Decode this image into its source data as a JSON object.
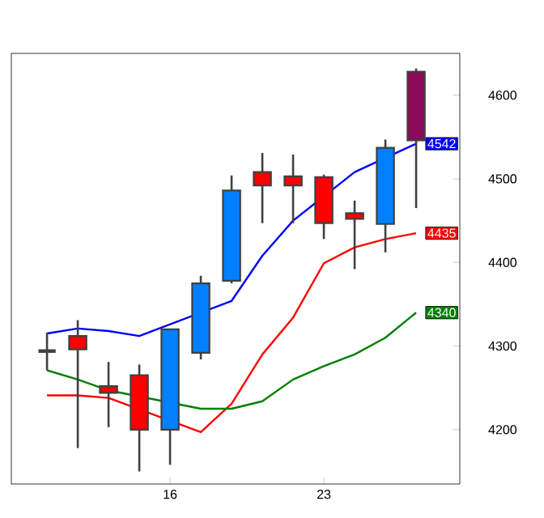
{
  "chart_data": {
    "type": "candlestick",
    "categories": [
      null,
      null,
      null,
      null,
      "16",
      null,
      null,
      null,
      null,
      "23",
      null,
      null,
      null
    ],
    "ohlc": [
      [
        4294,
        4316,
        4271,
        4294
      ],
      [
        4312,
        4331,
        4178,
        4296
      ],
      [
        4252,
        4281,
        4203,
        4244
      ],
      [
        4265,
        4278,
        4150,
        4200
      ],
      [
        4200,
        4320,
        4158,
        4320
      ],
      [
        4292,
        4384,
        4284,
        4375
      ],
      [
        4378,
        4504,
        4375,
        4486
      ],
      [
        4508,
        4531,
        4447,
        4492
      ],
      [
        4503,
        4529,
        4447,
        4492
      ],
      [
        4502,
        4505,
        4428,
        4447
      ],
      [
        4459,
        4474,
        4392,
        4452
      ],
      [
        4446,
        4547,
        4412,
        4537
      ],
      [
        4628,
        4632,
        4465,
        4546
      ]
    ],
    "colors": [
      "#404040",
      "#ff0000",
      "#ff0000",
      "#ff0000",
      "#0080ff",
      "#0080ff",
      "#0080ff",
      "#ff0000",
      "#ff0000",
      "#ff0000",
      "#ff0000",
      "#0080ff",
      "#8b0a5a"
    ],
    "series": [
      {
        "type": "line",
        "color": "#0000ff",
        "values": [
          4315,
          4321,
          4318,
          4312,
          null,
          null,
          4354,
          4408,
          4450,
          null,
          4508,
          null,
          4542
        ],
        "value_labels": [
          null,
          null,
          null,
          null,
          null,
          null,
          null,
          null,
          null,
          null,
          null,
          null,
          "4542"
        ]
      },
      {
        "type": "line",
        "color": "#ff0000",
        "values": [
          4241,
          4241,
          4238,
          null,
          null,
          4197,
          4231,
          4290,
          4334,
          4399,
          4418,
          4428,
          4435
        ],
        "value_labels": [
          null,
          null,
          null,
          null,
          null,
          null,
          null,
          null,
          null,
          null,
          null,
          null,
          "4435"
        ]
      },
      {
        "type": "line",
        "color": "#008000",
        "values": [
          4271,
          4260,
          4247,
          null,
          null,
          4225,
          4225,
          4234,
          4260,
          4276,
          4290,
          4310,
          4340
        ],
        "value_labels": [
          null,
          null,
          null,
          null,
          null,
          null,
          null,
          null,
          null,
          null,
          null,
          null,
          "4340"
        ]
      }
    ],
    "ylim": [
      4135,
      4650
    ],
    "yticks": [
      4200,
      4300,
      4400,
      4500,
      4600
    ],
    "grid": false
  }
}
